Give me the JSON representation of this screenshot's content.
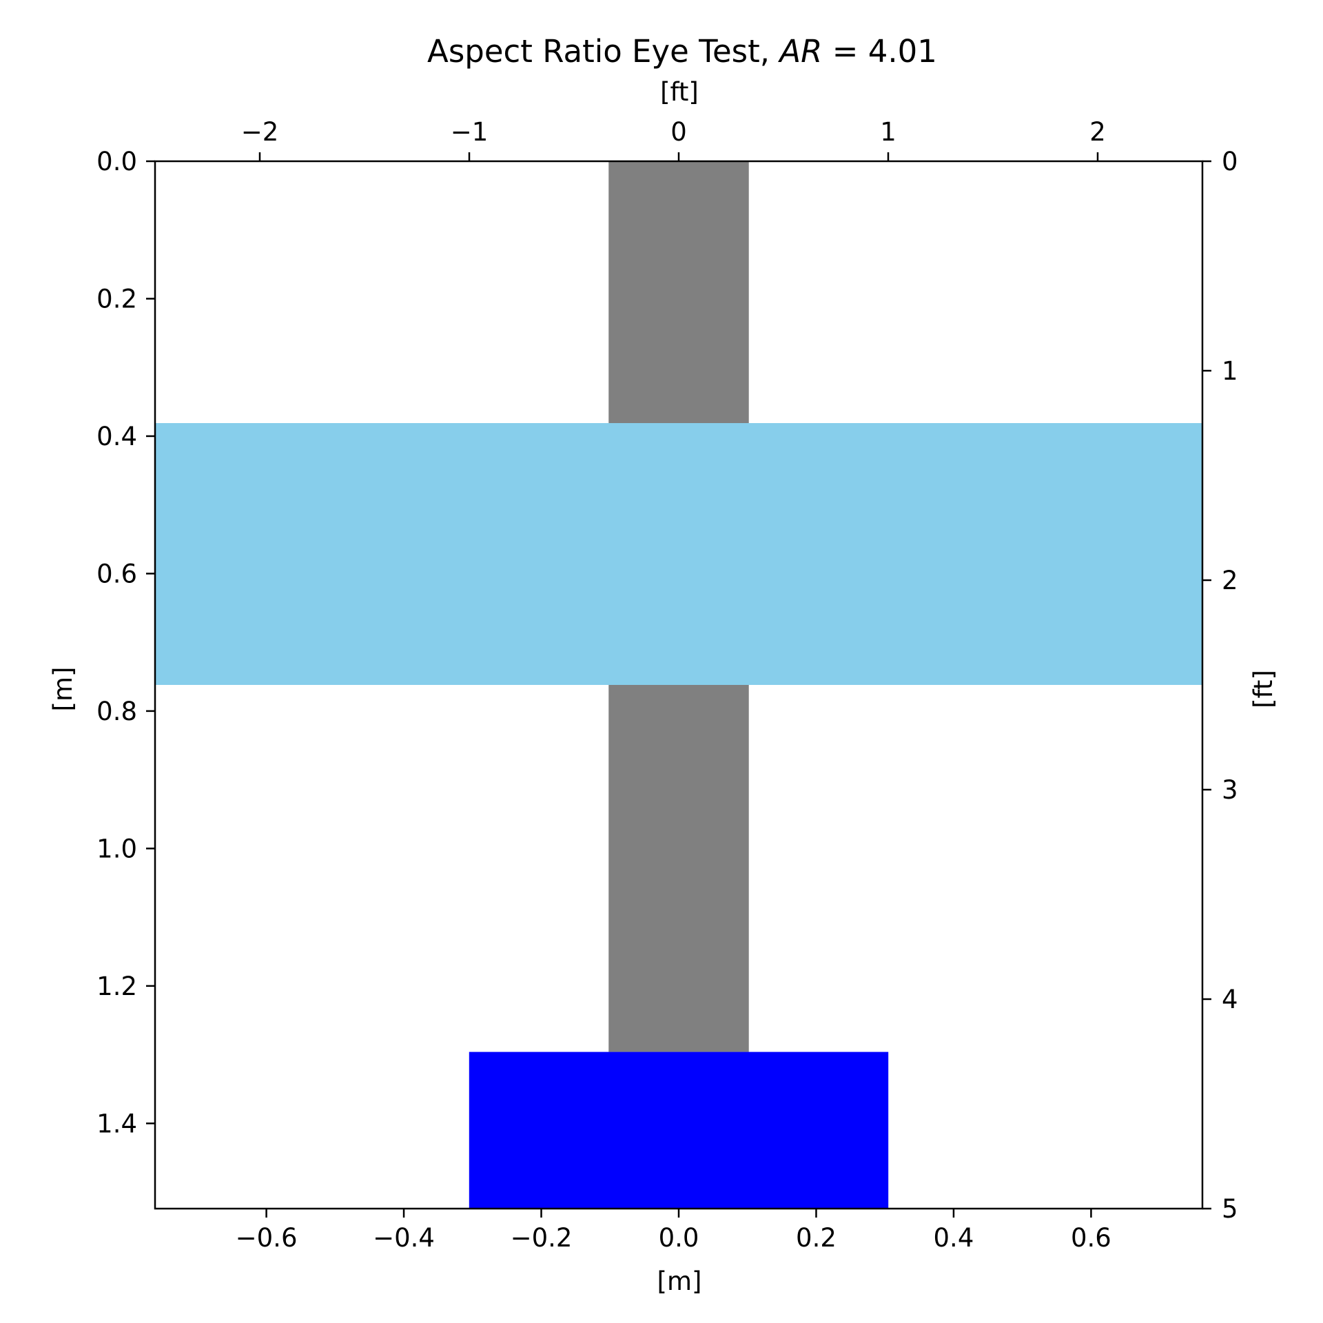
{
  "chart_data": {
    "type": "bar",
    "title": {
      "prefix": "Aspect Ratio Eye Test, ",
      "math_var": "AR",
      "equals": " = ",
      "value": "4.01"
    },
    "xlabel": "[m]",
    "ylabel": "[m]",
    "x2label": "[ft]",
    "y2label": "[ft]",
    "xlim": [
      -0.762,
      0.762
    ],
    "ylim": [
      1.524,
      0.0
    ],
    "x2lim": [
      -2.5,
      2.5
    ],
    "y2lim": [
      5,
      0
    ],
    "y_inverted": true,
    "grid": false,
    "x_ticks": [
      {
        "value": -0.6,
        "label": "−0.6"
      },
      {
        "value": -0.4,
        "label": "−0.4"
      },
      {
        "value": -0.2,
        "label": "−0.2"
      },
      {
        "value": 0.0,
        "label": "0.0"
      },
      {
        "value": 0.2,
        "label": "0.2"
      },
      {
        "value": 0.4,
        "label": "0.4"
      },
      {
        "value": 0.6,
        "label": "0.6"
      }
    ],
    "y_ticks": [
      {
        "value": 0.0,
        "label": "0.0"
      },
      {
        "value": 0.2,
        "label": "0.2"
      },
      {
        "value": 0.4,
        "label": "0.4"
      },
      {
        "value": 0.6,
        "label": "0.6"
      },
      {
        "value": 0.8,
        "label": "0.8"
      },
      {
        "value": 1.0,
        "label": "1.0"
      },
      {
        "value": 1.2,
        "label": "1.2"
      },
      {
        "value": 1.4,
        "label": "1.4"
      }
    ],
    "x2_ticks": [
      {
        "value": -2,
        "label": "−2"
      },
      {
        "value": -1,
        "label": "−1"
      },
      {
        "value": 0,
        "label": "0"
      },
      {
        "value": 1,
        "label": "1"
      },
      {
        "value": 2,
        "label": "2"
      }
    ],
    "y2_ticks": [
      {
        "value": 0,
        "label": "0"
      },
      {
        "value": 1,
        "label": "1"
      },
      {
        "value": 2,
        "label": "2"
      },
      {
        "value": 3,
        "label": "3"
      },
      {
        "value": 4,
        "label": "4"
      },
      {
        "value": 5,
        "label": "5"
      }
    ],
    "rectangles": [
      {
        "name": "fuselage-bar",
        "x0": -0.102,
        "x1": 0.102,
        "y0": 0.0,
        "y1": 1.296,
        "color": "#808080"
      },
      {
        "name": "wing-bar",
        "x0": -0.762,
        "x1": 0.762,
        "y0": 0.381,
        "y1": 0.762,
        "color": "#87ceeb"
      },
      {
        "name": "tail-bar",
        "x0": -0.305,
        "x1": 0.305,
        "y0": 1.296,
        "y1": 1.524,
        "color": "#0000ff"
      }
    ]
  }
}
